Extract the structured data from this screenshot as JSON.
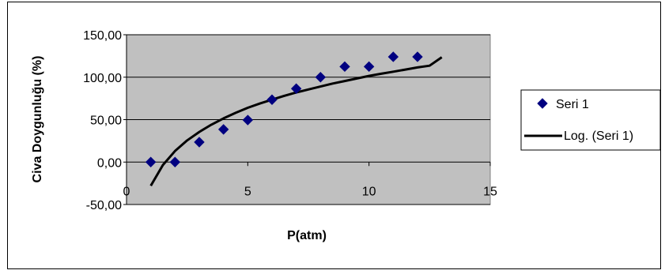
{
  "chart_data": {
    "type": "scatter",
    "title": "",
    "xlabel": "P(atm)",
    "ylabel": "Civa Doygunluğu (%)",
    "xlim": [
      0,
      15
    ],
    "ylim": [
      -50,
      150
    ],
    "x_ticks": [
      "0",
      "5",
      "10",
      "15"
    ],
    "y_ticks": [
      "150,00",
      "100,00",
      "50,00",
      "0,00",
      "-50,00"
    ],
    "grid": "horizontal",
    "plot_background": "#c0c0c0",
    "legend_position": "right",
    "series": [
      {
        "name": "Seri 1",
        "marker": "diamond",
        "color": "#000080",
        "x": [
          1,
          2,
          3,
          4,
          5,
          6,
          7,
          8,
          9,
          10,
          11,
          12
        ],
        "y": [
          0,
          0,
          23.5,
          38.5,
          49.5,
          73.5,
          86.5,
          100,
          112.5,
          112.5,
          124,
          124
        ]
      },
      {
        "name": "Log. (Seri 1)",
        "type": "trendline",
        "color": "#000000",
        "x": [
          1,
          1.5,
          2,
          2.5,
          3,
          3.5,
          4,
          4.5,
          5,
          5.5,
          6,
          6.5,
          7,
          7.5,
          8,
          8.5,
          9,
          9.5,
          10,
          10.5,
          11,
          11.5,
          12,
          12.5,
          13
        ],
        "y": [
          -28,
          -3.5,
          13,
          25.5,
          35.5,
          44,
          51.5,
          58,
          64,
          69,
          73.5,
          78,
          82,
          85.5,
          89,
          92.5,
          95.5,
          98.5,
          101.5,
          104,
          106.5,
          109,
          111.5,
          113.5,
          123.5
        ]
      }
    ]
  }
}
